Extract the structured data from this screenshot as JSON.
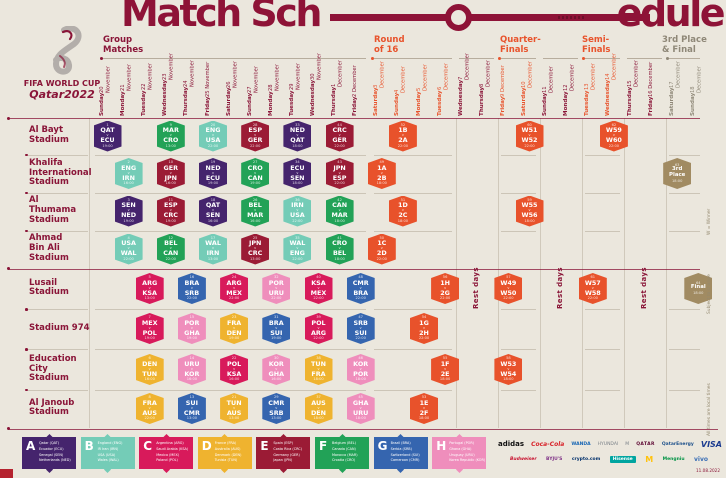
{
  "title": {
    "part1": "Match Sch",
    "part2": "edule"
  },
  "branding": {
    "line1": "FIFA WORLD CUP",
    "line2": "Qatar2022"
  },
  "sections": [
    {
      "id": "group",
      "label": "Group\nMatches",
      "color": "#8a1538"
    },
    {
      "id": "r16",
      "label": "Round\nof 16",
      "color": "#e8532c"
    },
    {
      "id": "qf",
      "label": "Quarter-\nFinals",
      "color": "#e8532c"
    },
    {
      "id": "sf",
      "label": "Semi-\nFinals",
      "color": "#e8532c"
    },
    {
      "id": "final",
      "label": "3rd Place\n& Final",
      "color": "#8f8878"
    }
  ],
  "rest_label": "Rest days",
  "footnotes": [
    "W = Winner",
    "Subject to change",
    "All times are local times"
  ],
  "printed_date": "11.08.2022",
  "colors": {
    "A": "#45246d",
    "B": "#74ccb7",
    "C": "#d81a5b",
    "D": "#efb32f",
    "E": "#9b1b35",
    "F": "#22a257",
    "G": "#3565af",
    "H": "#ef8ebc",
    "KO": "#e8522b",
    "GOLD": "#a18b62",
    "maroon": "#8a1538",
    "orange": "#e8532c",
    "gray": "#8f8878"
  },
  "dates": [
    {
      "day": "Sunday",
      "date": "20 November",
      "phase": "group"
    },
    {
      "day": "Monday",
      "date": "21 November",
      "phase": "group"
    },
    {
      "day": "Tuesday",
      "date": "22 November",
      "phase": "group"
    },
    {
      "day": "Wednesday",
      "date": "23 November",
      "phase": "group"
    },
    {
      "day": "Thursday",
      "date": "24 November",
      "phase": "group"
    },
    {
      "day": "Friday",
      "date": "25 November",
      "phase": "group"
    },
    {
      "day": "Saturday",
      "date": "26 November",
      "phase": "group"
    },
    {
      "day": "Sunday",
      "date": "27 November",
      "phase": "group"
    },
    {
      "day": "Monday",
      "date": "28 November",
      "phase": "group"
    },
    {
      "day": "Tuesday",
      "date": "29 November",
      "phase": "group"
    },
    {
      "day": "Wednesday",
      "date": "30 November",
      "phase": "group"
    },
    {
      "day": "Thursday",
      "date": "1 December",
      "phase": "group"
    },
    {
      "day": "Friday",
      "date": "2 December",
      "phase": "group"
    },
    {
      "day": "Saturday",
      "date": "3 December",
      "phase": "r16"
    },
    {
      "day": "Sunday",
      "date": "4 December",
      "phase": "r16"
    },
    {
      "day": "Monday",
      "date": "5 December",
      "phase": "r16"
    },
    {
      "day": "Tuesday",
      "date": "6 December",
      "phase": "r16"
    },
    {
      "day": "Wednesday",
      "date": "7 December",
      "phase": "rest"
    },
    {
      "day": "Thursday",
      "date": "8 December",
      "phase": "rest"
    },
    {
      "day": "Friday",
      "date": "9 December",
      "phase": "qf"
    },
    {
      "day": "Saturday",
      "date": "10 December",
      "phase": "qf"
    },
    {
      "day": "Sunday",
      "date": "11 December",
      "phase": "rest"
    },
    {
      "day": "Monday",
      "date": "12 December",
      "phase": "rest"
    },
    {
      "day": "Tuesday",
      "date": "13 December",
      "phase": "sf"
    },
    {
      "day": "Wednesday",
      "date": "14 December",
      "phase": "sf"
    },
    {
      "day": "Thursday",
      "date": "15 December",
      "phase": "rest"
    },
    {
      "day": "Friday",
      "date": "16 December",
      "phase": "rest"
    },
    {
      "day": "Saturday",
      "date": "17 December",
      "phase": "final"
    },
    {
      "day": "Sunday",
      "date": "18 December",
      "phase": "final"
    }
  ],
  "stadiums": [
    {
      "name": "Al Bayt\nStadium"
    },
    {
      "name": "Khalifa\nInternational\nStadium"
    },
    {
      "name": "Al\nThumama\nStadium"
    },
    {
      "name": "Ahmad\nBin Ali\nStadium"
    },
    {
      "name": "Lusail\nStadium"
    },
    {
      "name": "Stadium 974"
    },
    {
      "name": "Education\nCity\nStadium"
    },
    {
      "name": "Al Janoub\nStadium"
    }
  ],
  "matches": [
    {
      "stadium": 0,
      "day": 0,
      "num": "1",
      "top": "QAT",
      "bottom": "ECU",
      "time": "19:00",
      "group": "A"
    },
    {
      "stadium": 0,
      "day": 3,
      "num": "9",
      "top": "MAR",
      "bottom": "CRO",
      "time": "13:00",
      "group": "F"
    },
    {
      "stadium": 0,
      "day": 5,
      "num": "20",
      "top": "ENG",
      "bottom": "USA",
      "time": "22:00",
      "group": "B"
    },
    {
      "stadium": 0,
      "day": 7,
      "num": "28",
      "top": "ESP",
      "bottom": "GER",
      "time": "22:00",
      "group": "E"
    },
    {
      "stadium": 0,
      "day": 9,
      "num": "33",
      "top": "NED",
      "bottom": "QAT",
      "time": "18:00",
      "group": "A"
    },
    {
      "stadium": 0,
      "day": 11,
      "num": "44",
      "top": "CRC",
      "bottom": "GER",
      "time": "22:00",
      "group": "E"
    },
    {
      "stadium": 0,
      "day": 14,
      "num": "52",
      "top": "1B",
      "bottom": "2A",
      "time": "22:00",
      "group": "KO"
    },
    {
      "stadium": 0,
      "day": 20,
      "num": "60",
      "top": "W51",
      "bottom": "W52",
      "time": "22:00",
      "group": "KO"
    },
    {
      "stadium": 0,
      "day": 24,
      "num": "62",
      "top": "W59",
      "bottom": "W60",
      "time": "22:00",
      "group": "KO"
    },
    {
      "stadium": 1,
      "day": 1,
      "num": "2",
      "top": "ENG",
      "bottom": "IRN",
      "time": "16:00",
      "group": "B"
    },
    {
      "stadium": 1,
      "day": 3,
      "num": "10",
      "top": "GER",
      "bottom": "JPN",
      "time": "16:00",
      "group": "E"
    },
    {
      "stadium": 1,
      "day": 5,
      "num": "19",
      "top": "NED",
      "bottom": "ECU",
      "time": "19:00",
      "group": "A"
    },
    {
      "stadium": 1,
      "day": 7,
      "num": "27",
      "top": "CRO",
      "bottom": "CAN",
      "time": "19:00",
      "group": "F"
    },
    {
      "stadium": 1,
      "day": 9,
      "num": "34",
      "top": "ECU",
      "bottom": "SEN",
      "time": "18:00",
      "group": "A"
    },
    {
      "stadium": 1,
      "day": 11,
      "num": "43",
      "top": "JPN",
      "bottom": "ESP",
      "time": "22:00",
      "group": "E"
    },
    {
      "stadium": 1,
      "day": 13,
      "num": "49",
      "top": "1A",
      "bottom": "2B",
      "time": "18:00",
      "group": "KO"
    },
    {
      "stadium": 1,
      "day": 27,
      "num": "63",
      "label": "3rd\nPlace",
      "time": "18:00",
      "group": "GOLD"
    },
    {
      "stadium": 2,
      "day": 1,
      "num": "3",
      "top": "SEN",
      "bottom": "NED",
      "time": "19:00",
      "group": "A"
    },
    {
      "stadium": 2,
      "day": 3,
      "num": "11",
      "top": "ESP",
      "bottom": "CRC",
      "time": "19:00",
      "group": "E"
    },
    {
      "stadium": 2,
      "day": 5,
      "num": "18",
      "top": "QAT",
      "bottom": "SEN",
      "time": "16:00",
      "group": "A"
    },
    {
      "stadium": 2,
      "day": 7,
      "num": "26",
      "top": "BEL",
      "bottom": "MAR",
      "time": "16:00",
      "group": "F"
    },
    {
      "stadium": 2,
      "day": 9,
      "num": "36",
      "top": "IRN",
      "bottom": "USA",
      "time": "22:00",
      "group": "B"
    },
    {
      "stadium": 2,
      "day": 11,
      "num": "42",
      "top": "CAN",
      "bottom": "MAR",
      "time": "18:00",
      "group": "F"
    },
    {
      "stadium": 2,
      "day": 14,
      "num": "51",
      "top": "1D",
      "bottom": "2C",
      "time": "18:00",
      "group": "KO"
    },
    {
      "stadium": 2,
      "day": 20,
      "num": "59",
      "top": "W55",
      "bottom": "W56",
      "time": "18:00",
      "group": "KO"
    },
    {
      "stadium": 3,
      "day": 1,
      "num": "4",
      "top": "USA",
      "bottom": "WAL",
      "time": "22:00",
      "group": "B"
    },
    {
      "stadium": 3,
      "day": 3,
      "num": "12",
      "top": "BEL",
      "bottom": "CAN",
      "time": "22:00",
      "group": "F"
    },
    {
      "stadium": 3,
      "day": 5,
      "num": "17",
      "top": "WAL",
      "bottom": "IRN",
      "time": "13:00",
      "group": "B"
    },
    {
      "stadium": 3,
      "day": 7,
      "num": "25",
      "top": "JPN",
      "bottom": "CRC",
      "time": "13:00",
      "group": "E"
    },
    {
      "stadium": 3,
      "day": 9,
      "num": "35",
      "top": "WAL",
      "bottom": "ENG",
      "time": "22:00",
      "group": "B"
    },
    {
      "stadium": 3,
      "day": 11,
      "num": "41",
      "top": "CRO",
      "bottom": "BEL",
      "time": "18:00",
      "group": "F"
    },
    {
      "stadium": 3,
      "day": 13,
      "num": "50",
      "top": "1C",
      "bottom": "2D",
      "time": "22:00",
      "group": "KO"
    },
    {
      "stadium": 4,
      "day": 2,
      "num": "5",
      "top": "ARG",
      "bottom": "KSA",
      "time": "13:00",
      "group": "C"
    },
    {
      "stadium": 4,
      "day": 4,
      "num": "16",
      "top": "BRA",
      "bottom": "SRB",
      "time": "22:00",
      "group": "G"
    },
    {
      "stadium": 4,
      "day": 6,
      "num": "24",
      "top": "ARG",
      "bottom": "MEX",
      "time": "22:00",
      "group": "C"
    },
    {
      "stadium": 4,
      "day": 8,
      "num": "32",
      "top": "POR",
      "bottom": "URU",
      "time": "22:00",
      "group": "H"
    },
    {
      "stadium": 4,
      "day": 10,
      "num": "40",
      "top": "KSA",
      "bottom": "MEX",
      "time": "22:00",
      "group": "C"
    },
    {
      "stadium": 4,
      "day": 12,
      "num": "48",
      "top": "CMR",
      "bottom": "BRA",
      "time": "22:00",
      "group": "G"
    },
    {
      "stadium": 4,
      "day": 16,
      "num": "56",
      "top": "1H",
      "bottom": "2G",
      "time": "22:00",
      "group": "KO"
    },
    {
      "stadium": 4,
      "day": 19,
      "num": "57",
      "top": "W49",
      "bottom": "W50",
      "time": "22:00",
      "group": "KO"
    },
    {
      "stadium": 4,
      "day": 23,
      "num": "61",
      "top": "W57",
      "bottom": "W58",
      "time": "22:00",
      "group": "KO"
    },
    {
      "stadium": 4,
      "day": 28,
      "num": "64",
      "label": "Final",
      "time": "18:00",
      "group": "GOLD"
    },
    {
      "stadium": 5,
      "day": 2,
      "num": "7",
      "top": "MEX",
      "bottom": "POL",
      "time": "19:00",
      "group": "C"
    },
    {
      "stadium": 5,
      "day": 4,
      "num": "15",
      "top": "POR",
      "bottom": "GHA",
      "time": "19:00",
      "group": "H"
    },
    {
      "stadium": 5,
      "day": 6,
      "num": "23",
      "top": "FRA",
      "bottom": "DEN",
      "time": "19:00",
      "group": "D"
    },
    {
      "stadium": 5,
      "day": 8,
      "num": "31",
      "top": "BRA",
      "bottom": "SUI",
      "time": "19:00",
      "group": "G"
    },
    {
      "stadium": 5,
      "day": 10,
      "num": "39",
      "top": "POL",
      "bottom": "ARG",
      "time": "22:00",
      "group": "C"
    },
    {
      "stadium": 5,
      "day": 12,
      "num": "47",
      "top": "SRB",
      "bottom": "SUI",
      "time": "22:00",
      "group": "G"
    },
    {
      "stadium": 5,
      "day": 15,
      "num": "54",
      "top": "1G",
      "bottom": "2H",
      "time": "22:00",
      "group": "KO"
    },
    {
      "stadium": 6,
      "day": 2,
      "num": "6",
      "top": "DEN",
      "bottom": "TUN",
      "time": "16:00",
      "group": "D"
    },
    {
      "stadium": 6,
      "day": 4,
      "num": "14",
      "top": "URU",
      "bottom": "KOR",
      "time": "16:00",
      "group": "H"
    },
    {
      "stadium": 6,
      "day": 6,
      "num": "22",
      "top": "POL",
      "bottom": "KSA",
      "time": "16:00",
      "group": "C"
    },
    {
      "stadium": 6,
      "day": 8,
      "num": "30",
      "top": "KOR",
      "bottom": "GHA",
      "time": "16:00",
      "group": "H"
    },
    {
      "stadium": 6,
      "day": 10,
      "num": "38",
      "top": "TUN",
      "bottom": "FRA",
      "time": "18:00",
      "group": "D"
    },
    {
      "stadium": 6,
      "day": 12,
      "num": "46",
      "top": "KOR",
      "bottom": "POR",
      "time": "18:00",
      "group": "H"
    },
    {
      "stadium": 6,
      "day": 16,
      "num": "55",
      "top": "1F",
      "bottom": "2E",
      "time": "18:00",
      "group": "KO"
    },
    {
      "stadium": 6,
      "day": 19,
      "num": "58",
      "top": "W53",
      "bottom": "W54",
      "time": "18:00",
      "group": "KO"
    },
    {
      "stadium": 7,
      "day": 2,
      "num": "8",
      "top": "FRA",
      "bottom": "AUS",
      "time": "22:00",
      "group": "D"
    },
    {
      "stadium": 7,
      "day": 4,
      "num": "13",
      "top": "SUI",
      "bottom": "CMR",
      "time": "13:00",
      "group": "G"
    },
    {
      "stadium": 7,
      "day": 6,
      "num": "21",
      "top": "TUN",
      "bottom": "AUS",
      "time": "13:00",
      "group": "D"
    },
    {
      "stadium": 7,
      "day": 8,
      "num": "29",
      "top": "CMR",
      "bottom": "SRB",
      "time": "13:00",
      "group": "G"
    },
    {
      "stadium": 7,
      "day": 10,
      "num": "37",
      "top": "AUS",
      "bottom": "DEN",
      "time": "18:00",
      "group": "D"
    },
    {
      "stadium": 7,
      "day": 12,
      "num": "45",
      "top": "GHA",
      "bottom": "URU",
      "time": "18:00",
      "group": "H"
    },
    {
      "stadium": 7,
      "day": 15,
      "num": "53",
      "top": "1E",
      "bottom": "2F",
      "time": "18:00",
      "group": "KO"
    }
  ],
  "legend": [
    {
      "letter": "A",
      "group": "A",
      "teams": "Qatar (QAT)\nEcuador (ECU)\nSenegal (SEN)\nNetherlands (NED)"
    },
    {
      "letter": "B",
      "group": "B",
      "teams": "England (ENG)\nIR Iran (IRN)\nUSA (USA)\nWales (WAL)"
    },
    {
      "letter": "C",
      "group": "C",
      "teams": "Argentina (ARG)\nSaudi Arabia (KSA)\nMexico (MEX)\nPoland (POL)"
    },
    {
      "letter": "D",
      "group": "D",
      "teams": "France (FRA)\nAustralia (AUS)\nDenmark (DEN)\nTunisia (TUN)"
    },
    {
      "letter": "E",
      "group": "E",
      "teams": "Spain (ESP)\nCosta Rica (CRC)\nGermany (GER)\nJapan (JPN)"
    },
    {
      "letter": "F",
      "group": "F",
      "teams": "Belgium (BEL)\nCanada (CAN)\nMorocco (MAR)\nCroatia (CRO)"
    },
    {
      "letter": "G",
      "group": "G",
      "teams": "Brazil (BRA)\nSerbia (SRB)\nSwitzerland (SUI)\nCameroon (CMR)"
    },
    {
      "letter": "H",
      "group": "H",
      "teams": "Portugal (POR)\nGhana (GHA)\nUruguay (URU)\nKorea Republic (KOR)"
    }
  ],
  "sponsors": {
    "row1": [
      "adidas",
      "Coca-Cola",
      "WANDA",
      "HYUNDAI",
      "KIA",
      "QATAR",
      "QatarEnergy",
      "VISA"
    ],
    "row2": [
      "Budweiser",
      "BYJU'S",
      "crypto.com",
      "Hisense",
      "McDonald's",
      "Mengniu",
      "vivo"
    ]
  }
}
